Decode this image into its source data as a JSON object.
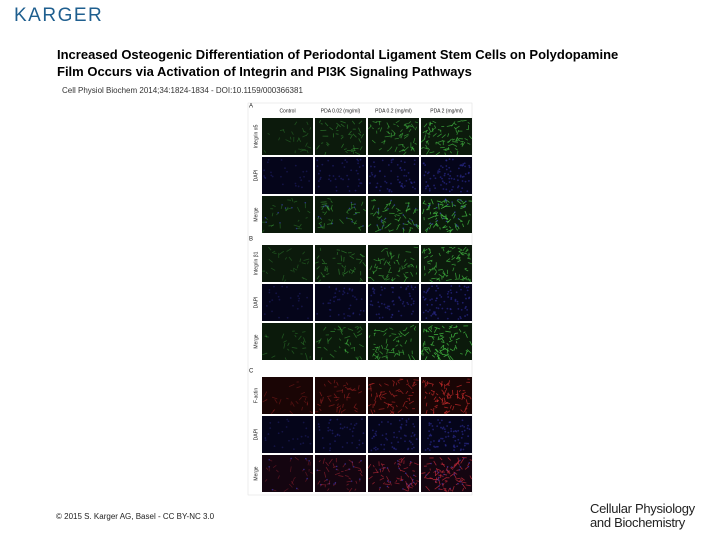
{
  "header": {
    "publisher": "KARGER",
    "title_lines": [
      "Increased Osteogenic Differentiation of Periodontal Ligament Stem Cells on Polydopamine",
      "Film Occurs via Activation of Integrin and PI3K Signaling Pathways"
    ],
    "citation": "Cell Physiol Biochem 2014;34:1824-1834 - DOI:10.1159/000366381"
  },
  "figure": {
    "columns": [
      "Control",
      "PDA 0.02 (mg/ml)",
      "PDA 0.2 (mg/ml)",
      "PDA 2 (mg/ml)"
    ],
    "panels": [
      {
        "label": "A",
        "rows": [
          "Integrin α5",
          "DAPI",
          "Merge"
        ]
      },
      {
        "label": "B",
        "rows": [
          "Integrin β1",
          "DAPI",
          "Merge"
        ]
      },
      {
        "label": "C",
        "rows": [
          "F-actin",
          "DAPI",
          "Merge"
        ]
      }
    ]
  },
  "footer": {
    "copyright": "© 2015 S. Karger AG, Basel - CC BY-NC 3.0",
    "journal_lines": [
      "Cellular Physiology",
      "and Biochemistry"
    ]
  }
}
